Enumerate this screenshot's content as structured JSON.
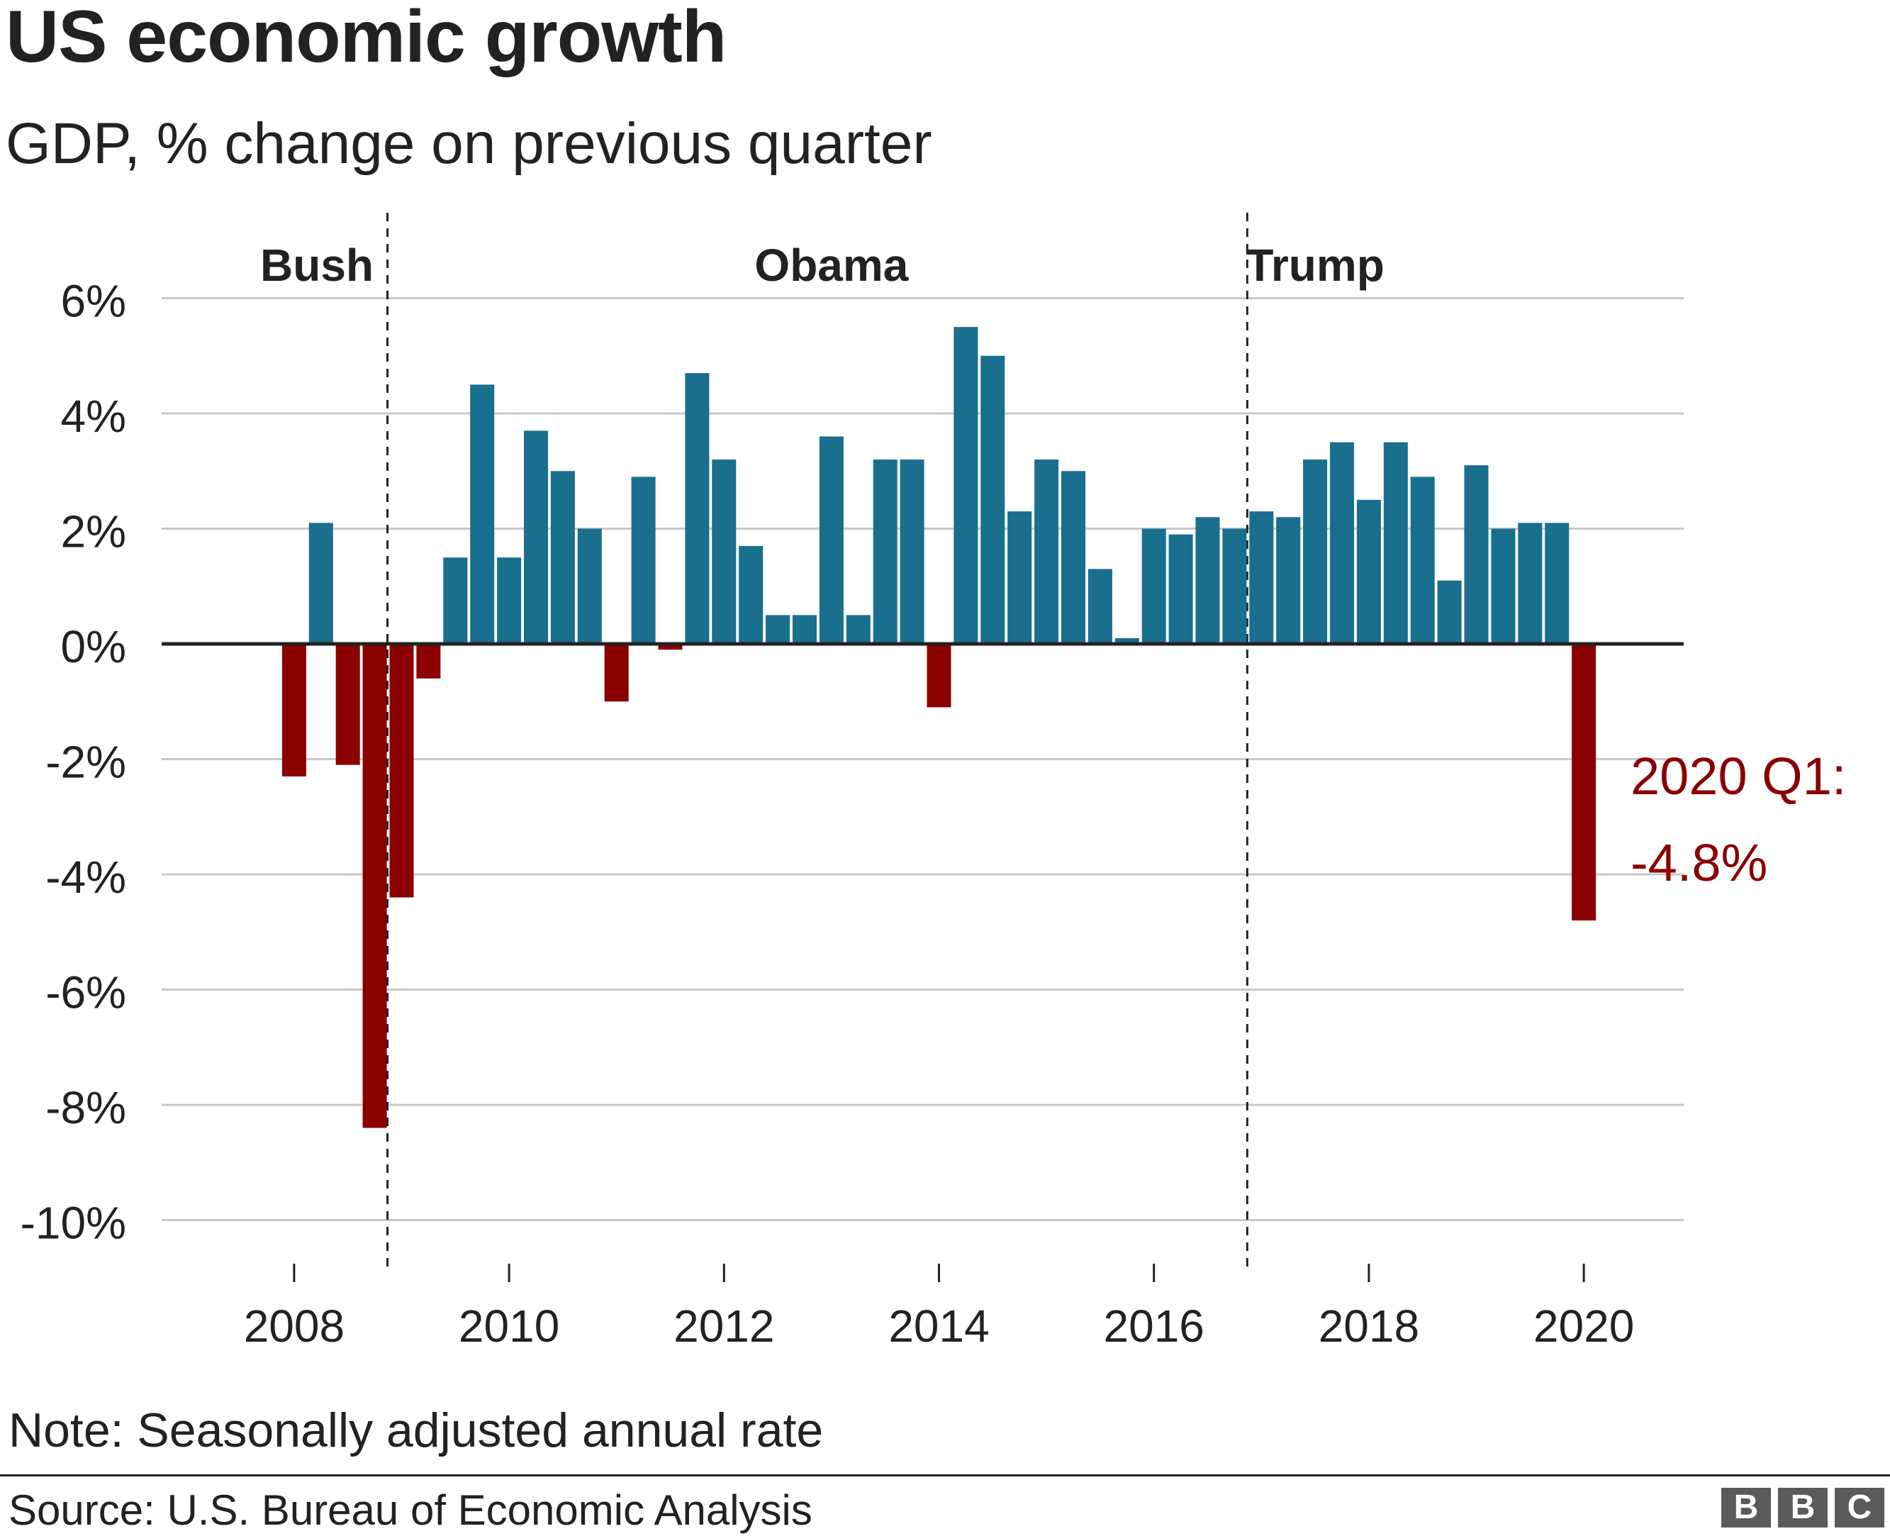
{
  "header": {
    "title": "US economic growth",
    "subtitle": "GDP, % change on previous quarter"
  },
  "footer": {
    "note": "Note: Seasonally adjusted annual rate",
    "source": "Source: U.S. Bureau of Economic Analysis",
    "logo_letters": [
      "B",
      "B",
      "C"
    ]
  },
  "colors": {
    "positive": "#1a6e8e",
    "negative": "#8b0000",
    "grid": "#c8c8c8",
    "zero_line": "#222222",
    "text": "#222222",
    "logo": "#5a5a5a"
  },
  "chart_data": {
    "type": "bar",
    "title": "US economic growth",
    "subtitle": "GDP, % change on previous quarter",
    "ylabel": "",
    "xlabel": "",
    "ylim": [
      -10,
      6
    ],
    "y_ticks": [
      6,
      4,
      2,
      0,
      -2,
      -4,
      -6,
      -8,
      -10
    ],
    "y_tick_labels": [
      "6%",
      "4%",
      "2%",
      "0%",
      "-2%",
      "-4%",
      "-6%",
      "-8%",
      "-10%"
    ],
    "x_tick_years": [
      2008,
      2010,
      2012,
      2014,
      2016,
      2018,
      2020
    ],
    "x_tick_labels": [
      "2008",
      "2010",
      "2012",
      "2014",
      "2016",
      "2018",
      "2020"
    ],
    "grid": true,
    "categories": [
      "2007 Q4",
      "2008 Q1",
      "2008 Q2",
      "2008 Q3",
      "2008 Q4",
      "2009 Q1",
      "2009 Q2",
      "2009 Q3",
      "2009 Q4",
      "2010 Q1",
      "2010 Q2",
      "2010 Q3",
      "2010 Q4",
      "2011 Q1",
      "2011 Q2",
      "2011 Q3",
      "2011 Q4",
      "2012 Q1",
      "2012 Q2",
      "2012 Q3",
      "2012 Q4",
      "2013 Q1",
      "2013 Q2",
      "2013 Q3",
      "2013 Q4",
      "2014 Q1",
      "2014 Q2",
      "2014 Q3",
      "2014 Q4",
      "2015 Q1",
      "2015 Q2",
      "2015 Q3",
      "2015 Q4",
      "2016 Q1",
      "2016 Q2",
      "2016 Q3",
      "2016 Q4",
      "2017 Q1",
      "2017 Q2",
      "2017 Q3",
      "2017 Q4",
      "2018 Q1",
      "2018 Q2",
      "2018 Q3",
      "2018 Q4",
      "2019 Q1",
      "2019 Q2",
      "2019 Q3",
      "2019 Q4",
      "2020 Q1"
    ],
    "values": [
      0,
      -2.3,
      2.1,
      -2.1,
      -8.4,
      -4.4,
      -0.6,
      1.5,
      4.5,
      1.5,
      3.7,
      3.0,
      2.0,
      -1.0,
      2.9,
      -0.1,
      4.7,
      3.2,
      1.7,
      0.5,
      0.5,
      3.6,
      0.5,
      3.2,
      3.2,
      -1.1,
      5.5,
      5.0,
      2.3,
      3.2,
      3.0,
      1.3,
      0.1,
      2.0,
      1.9,
      2.2,
      2.0,
      2.3,
      2.2,
      3.2,
      3.5,
      2.5,
      3.5,
      2.9,
      1.1,
      3.1,
      2.0,
      2.1,
      2.1,
      -4.8
    ],
    "presidencies": [
      {
        "name": "Bush",
        "label_after_quarter": 0
      },
      {
        "name": "Obama",
        "label_after_quarter": 21
      },
      {
        "name": "Trump",
        "label_after_quarter": 39
      }
    ],
    "presidency_dividers_after": [
      5,
      37
    ],
    "annotation": {
      "lines": [
        "2020 Q1:",
        "-4.8%"
      ],
      "target": "2020 Q1"
    }
  }
}
